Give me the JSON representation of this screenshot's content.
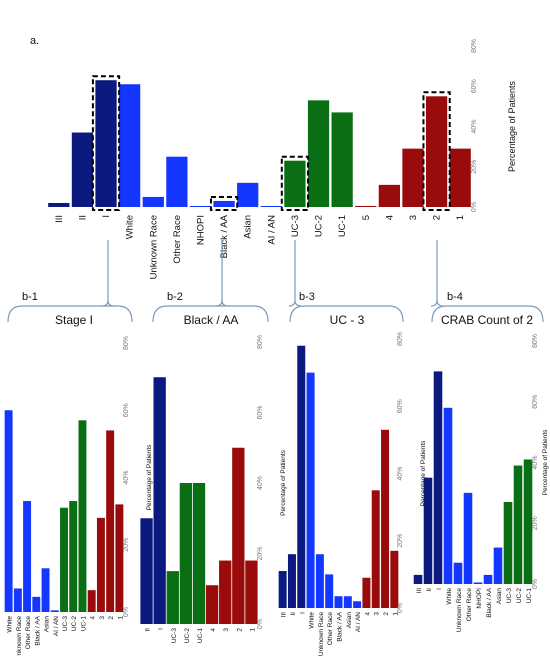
{
  "colors": {
    "stage": "#0c1a80",
    "race": "#1437ff",
    "uc": "#0a6e14",
    "crab": "#9a0c0c"
  },
  "panel_a_label": "a.",
  "chart_data": [
    {
      "id": "a",
      "type": "bar",
      "ylabel": "Percentage of Patients",
      "ylim": [
        0,
        80
      ],
      "yticks": [
        "0%",
        "20%",
        "40%",
        "60%",
        "80%"
      ],
      "categories": [
        "III",
        "II",
        "I",
        "White",
        "Unknown Race",
        "Other Race",
        "NHOPI",
        "Black / AA",
        "Asian",
        "AI / AN",
        "UC-3",
        "UC-2",
        "UC-1",
        "5",
        "4",
        "3",
        "2",
        "1"
      ],
      "groups": [
        "stage",
        "stage",
        "stage",
        "race",
        "race",
        "race",
        "race",
        "race",
        "race",
        "race",
        "uc",
        "uc",
        "uc",
        "crab",
        "crab",
        "crab",
        "crab",
        "crab"
      ],
      "values": [
        2,
        37,
        63,
        61,
        5,
        25,
        0.5,
        3,
        12,
        0.5,
        23,
        53,
        47,
        0.5,
        11,
        29,
        55,
        29
      ],
      "highlighted": [
        "I",
        "Black / AA",
        "UC-3",
        "2"
      ]
    },
    {
      "id": "b-1",
      "type": "bar",
      "ylabel": "Percentage of Patients",
      "ylim": [
        0,
        80
      ],
      "yticks": [
        "0%",
        "20%",
        "40%",
        "60%",
        "80%"
      ],
      "categories": [
        "White",
        "Unknown Race",
        "Other Race",
        "Black / AA",
        "Asian",
        "AI / AN",
        "UC-3",
        "UC-2",
        "UC-1",
        "4",
        "3",
        "2",
        "1"
      ],
      "groups": [
        "race",
        "race",
        "race",
        "race",
        "race",
        "race",
        "uc",
        "uc",
        "uc",
        "crab",
        "crab",
        "crab",
        "crab"
      ],
      "values": [
        60,
        7,
        33,
        4.5,
        13,
        0.5,
        31,
        33,
        57,
        6.5,
        28,
        54,
        32
      ]
    },
    {
      "id": "b-2",
      "type": "bar",
      "ylabel": "Percentage of Patients",
      "ylim": [
        0,
        80
      ],
      "yticks": [
        "0%",
        "20%",
        "40%",
        "60%",
        "80%"
      ],
      "categories": [
        "II",
        "I",
        "UC-3",
        "UC-2",
        "UC-1",
        "4",
        "3",
        "2",
        "1"
      ],
      "groups": [
        "stage",
        "stage",
        "uc",
        "uc",
        "uc",
        "crab",
        "crab",
        "crab",
        "crab"
      ],
      "values": [
        30,
        70,
        15,
        40,
        40,
        11,
        18,
        50,
        18
      ]
    },
    {
      "id": "b-3",
      "type": "bar",
      "ylabel": "Percentage of Patients",
      "ylim": [
        0,
        80
      ],
      "yticks": [
        "0%",
        "20%",
        "40%",
        "60%",
        "80%"
      ],
      "categories": [
        "III",
        "II",
        "I",
        "White",
        "Unknown Race",
        "Other Race",
        "Black / AA",
        "Asian",
        "AI / AN",
        "4",
        "3",
        "2",
        "1"
      ],
      "groups": [
        "stage",
        "stage",
        "stage",
        "race",
        "race",
        "race",
        "race",
        "race",
        "race",
        "crab",
        "crab",
        "crab",
        "crab"
      ],
      "values": [
        11,
        16,
        78,
        70,
        16,
        10,
        3.5,
        3.5,
        2,
        9,
        35,
        53,
        17
      ]
    },
    {
      "id": "b-4",
      "type": "bar",
      "ylabel": "Percentage of Patients",
      "ylim": [
        0,
        80
      ],
      "yticks": [
        "0%",
        "20%",
        "40%",
        "60%",
        "80%"
      ],
      "categories": [
        "III",
        "II",
        "I",
        "White",
        "Unknown Race",
        "Other Race",
        "NHOPI",
        "Black / AA",
        "Asian",
        "UC-3",
        "UC-2",
        "UC-1"
      ],
      "groups": [
        "stage",
        "stage",
        "stage",
        "race",
        "race",
        "race",
        "race",
        "race",
        "race",
        "uc",
        "uc",
        "uc"
      ],
      "values": [
        3,
        35,
        70,
        58,
        7,
        30,
        0.5,
        3,
        12,
        27,
        39,
        41
      ]
    }
  ],
  "subpanels": [
    {
      "id": "b-1",
      "label": "b-1",
      "title": "Stage I"
    },
    {
      "id": "b-2",
      "label": "b-2",
      "title": "Black / AA"
    },
    {
      "id": "b-3",
      "label": "b-3",
      "title": "UC - 3"
    },
    {
      "id": "b-4",
      "label": "b-4",
      "title": "CRAB Count of 2"
    }
  ]
}
